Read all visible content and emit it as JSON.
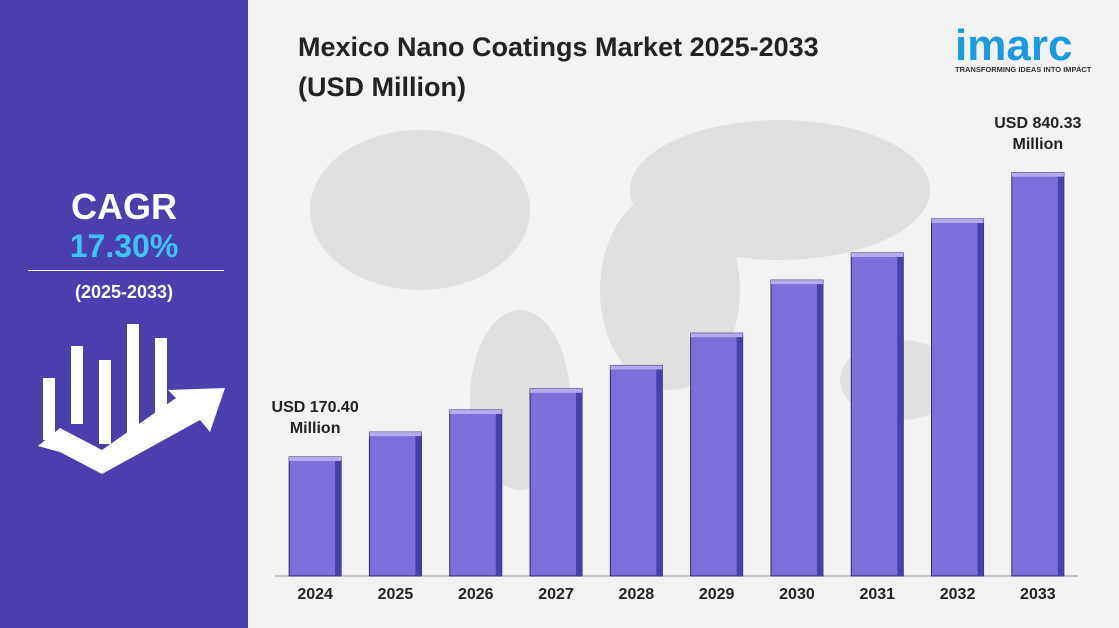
{
  "chart_data": {
    "type": "bar",
    "title": "Mexico Nano Coatings Market 2025-2033",
    "subtitle": "(USD Million)",
    "categories": [
      "2024",
      "2025",
      "2026",
      "2027",
      "2028",
      "2029",
      "2030",
      "2031",
      "2032",
      "2033"
    ],
    "values": [
      170.4,
      229,
      281,
      331,
      386,
      462,
      587,
      651,
      731,
      840.33
    ],
    "value_labels": [
      "USD 170.40 Million",
      null,
      null,
      null,
      null,
      null,
      null,
      null,
      null,
      "USD 840.33 Million"
    ],
    "color": "#7b70d9",
    "ylim": [
      -110,
      870
    ]
  },
  "cagr": {
    "label": "CAGR",
    "value": "17.30%",
    "period": "(2025-2033)"
  },
  "logo": {
    "name": "imarc",
    "tagline": "TRANSFORMING IDEAS INTO IMPACT"
  }
}
